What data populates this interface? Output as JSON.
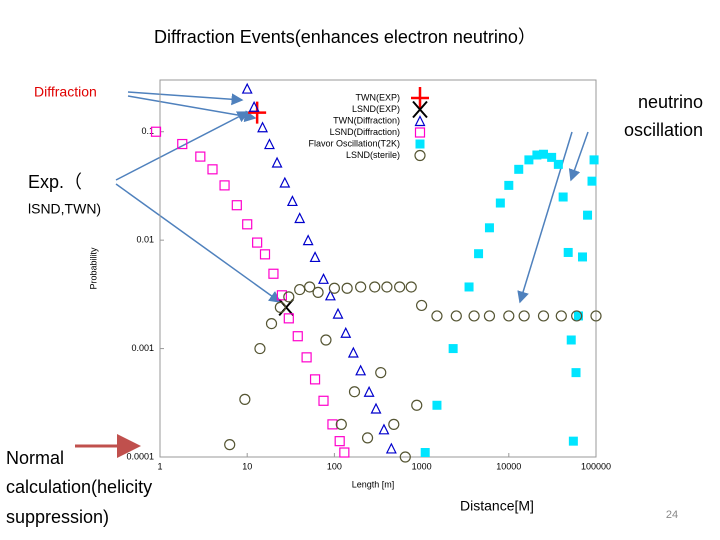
{
  "slide": {
    "title": "Diffraction Events(enhances electron neutrino）",
    "diffraction_label": "Diffraction",
    "oscillation_label": [
      "neutrino",
      "oscillation"
    ],
    "exp_label": [
      "Exp.（",
      "lSND,TWN)"
    ],
    "normal_label": [
      "Normal",
      "calculation(helicity",
      "suppression)"
    ],
    "distance_label": "Distance[M]",
    "page_number": "24"
  },
  "chart_data": {
    "type": "scatter",
    "x_label": "Length [m]",
    "y_label": "Probability",
    "xscale": "log",
    "yscale": "log",
    "xlim": [
      1,
      100000
    ],
    "ylim": [
      0.0001,
      0.3
    ],
    "xticks": [
      1,
      10,
      100,
      1000,
      10000,
      100000
    ],
    "yticks": [
      0.1,
      0.01,
      0.001,
      0.0001
    ],
    "legend": "upper right",
    "series": [
      {
        "name": "TWN(EXP)",
        "color": "#ff0000",
        "marker": "plus",
        "x": [
          13
        ],
        "values": [
          0.15
        ]
      },
      {
        "name": "LSND(EXP)",
        "color": "#000000",
        "marker": "x",
        "x": [
          28
        ],
        "values": [
          0.0024
        ]
      },
      {
        "name": "TWN(Diffraction)",
        "color": "#0000cc",
        "marker": "triangle",
        "x": [
          10,
          12,
          15,
          18,
          22,
          27,
          33,
          40,
          50,
          60,
          75,
          90,
          110,
          135,
          165,
          200,
          250,
          300,
          370,
          450
        ],
        "values": [
          0.25,
          0.17,
          0.11,
          0.077,
          0.052,
          0.034,
          0.023,
          0.016,
          0.01,
          0.007,
          0.0044,
          0.0031,
          0.0021,
          0.0014,
          0.00092,
          0.00063,
          0.0004,
          0.00028,
          0.00018,
          0.00012
        ]
      },
      {
        "name": "LSND(Diffraction)",
        "color": "#ff00cc",
        "marker": "square",
        "x": [
          0.9,
          1.8,
          2.9,
          4,
          5.5,
          7.6,
          10,
          13,
          16,
          20,
          25,
          30,
          38,
          48,
          60,
          75,
          95,
          115,
          130
        ],
        "values": [
          0.1,
          0.077,
          0.059,
          0.045,
          0.032,
          0.021,
          0.014,
          0.0095,
          0.0074,
          0.0049,
          0.0031,
          0.0019,
          0.0013,
          0.00083,
          0.00052,
          0.00033,
          0.0002,
          0.00014,
          0.00011
        ]
      },
      {
        "name": "Flavor Oscillation(T2K)",
        "color": "#00e5ff",
        "marker": "filled-square",
        "x": [
          1100,
          1500,
          2300,
          3500,
          4500,
          6000,
          8000,
          10000,
          13000,
          17000,
          21000,
          25000,
          31000,
          37000,
          42000,
          48000,
          52000,
          55000,
          59000,
          63000,
          70000,
          80000,
          90000,
          95000
        ],
        "values": [
          0.00011,
          0.0003,
          0.001,
          0.0037,
          0.0075,
          0.013,
          0.022,
          0.032,
          0.045,
          0.055,
          0.061,
          0.062,
          0.058,
          0.05,
          0.025,
          0.0077,
          0.0012,
          0.00014,
          0.0006,
          0.002,
          0.007,
          0.017,
          0.035,
          0.055
        ]
      },
      {
        "name": "LSND(sterile)",
        "color": "#555533",
        "marker": "circle",
        "x": [
          6.3,
          9.4,
          14,
          19,
          24,
          30,
          40,
          52,
          65,
          80,
          100,
          120,
          140,
          170,
          200,
          240,
          290,
          340,
          400,
          480,
          560,
          650,
          760,
          880,
          1000,
          1500,
          2500,
          4000,
          6000,
          10000,
          15000,
          25000,
          40000,
          60000,
          100000
        ],
        "values": [
          0.00013,
          0.00034,
          0.001,
          0.0017,
          0.0024,
          0.003,
          0.0035,
          0.0037,
          0.0033,
          0.0012,
          0.0036,
          0.0002,
          0.0036,
          0.0004,
          0.0037,
          0.00015,
          0.0037,
          0.0006,
          0.0037,
          0.0002,
          0.0037,
          0.0001,
          0.0037,
          0.0003,
          0.0025,
          0.002,
          0.002,
          0.002,
          0.002,
          0.002,
          0.002,
          0.002,
          0.002,
          0.002,
          0.002
        ]
      }
    ]
  }
}
